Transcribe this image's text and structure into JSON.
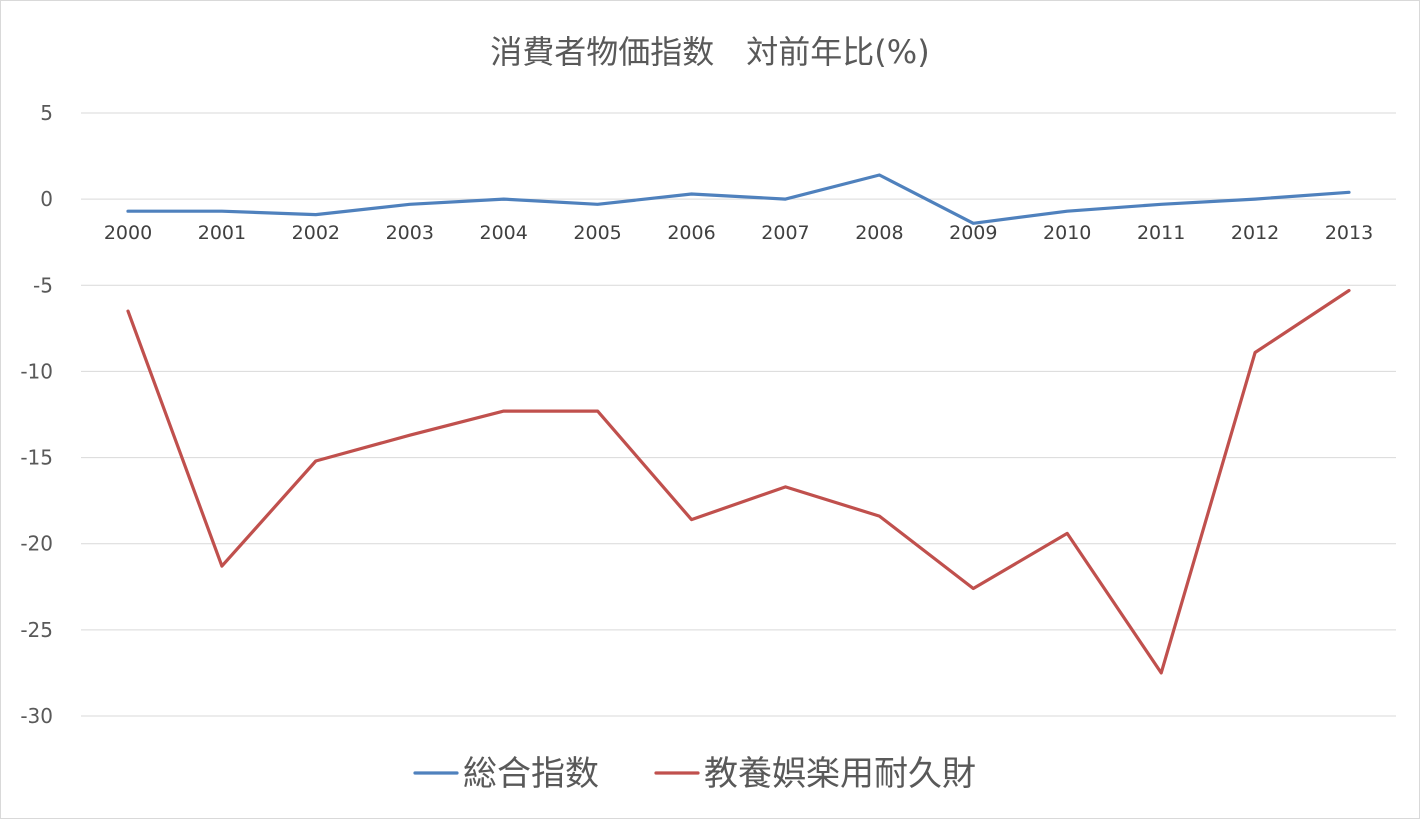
{
  "chart_data": {
    "type": "line",
    "title": "消費者物価指数　対前年比(%)",
    "xlabel": "",
    "ylabel": "",
    "categories": [
      "2000",
      "2001",
      "2002",
      "2003",
      "2004",
      "2005",
      "2006",
      "2007",
      "2008",
      "2009",
      "2010",
      "2011",
      "2012",
      "2013"
    ],
    "series": [
      {
        "name": "総合指数",
        "color": "#4f81bd",
        "values": [
          -0.7,
          -0.7,
          -0.9,
          -0.3,
          0.0,
          -0.3,
          0.3,
          0.0,
          1.4,
          -1.4,
          -0.7,
          -0.3,
          0.0,
          0.4
        ]
      },
      {
        "name": "教養娯楽用耐久財",
        "color": "#c0504d",
        "values": [
          -6.5,
          -21.3,
          -15.2,
          -13.7,
          -12.3,
          -12.3,
          -18.6,
          -16.7,
          -18.4,
          -22.6,
          -19.4,
          -27.5,
          -8.9,
          -5.3
        ]
      }
    ],
    "ylim": [
      -30,
      5
    ],
    "yticks": [
      5,
      0,
      -5,
      -10,
      -15,
      -20,
      -25,
      -30
    ],
    "grid": true,
    "legend_position": "bottom"
  }
}
